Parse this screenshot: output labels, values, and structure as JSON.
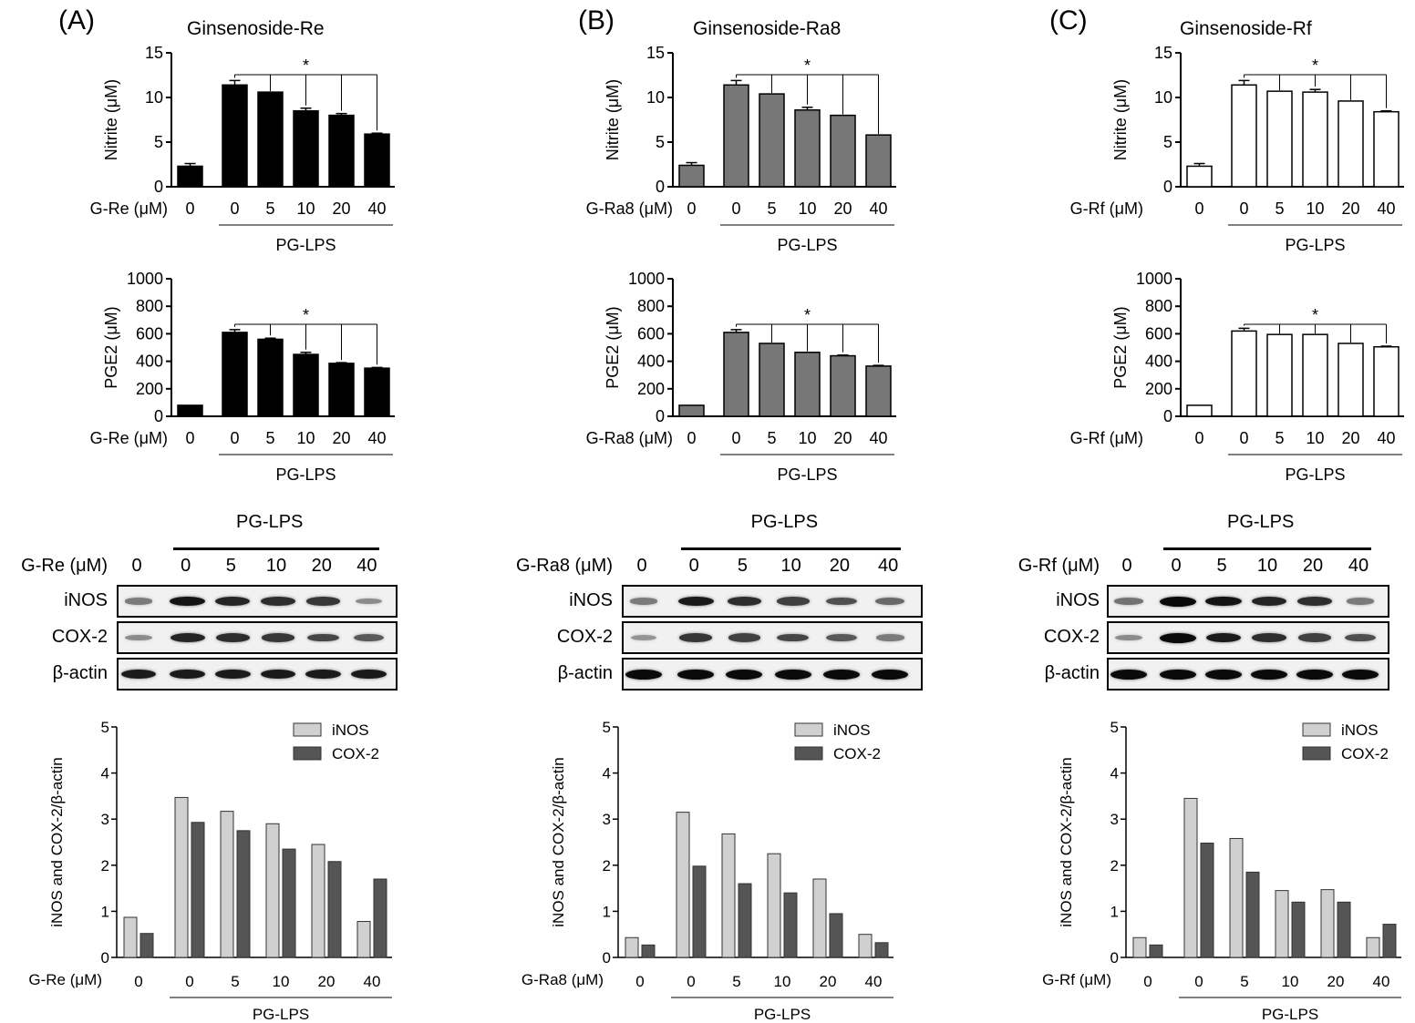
{
  "panels": [
    {
      "letter": "(A)",
      "title": "Ginsenoside-Re",
      "compound_axis_label": "G-Re (μM)",
      "blot_compound_label": "G-Re (μM)",
      "bar_color": "#000000",
      "doses": [
        "0",
        "0",
        "5",
        "10",
        "20",
        "40"
      ],
      "group_label": "PG-LPS",
      "significance": "*",
      "blot": {
        "rows": [
          "iNOS",
          "COX-2",
          "β-actin"
        ],
        "intensities": [
          [
            0.35,
            0.95,
            0.85,
            0.8,
            0.75,
            0.25
          ],
          [
            0.25,
            0.85,
            0.8,
            0.75,
            0.65,
            0.55
          ],
          [
            0.9,
            0.9,
            0.9,
            0.9,
            0.9,
            0.9
          ]
        ]
      }
    },
    {
      "letter": "(B)",
      "title": "Ginsenoside-Ra8",
      "compound_axis_label": "G-Ra8 (μM)",
      "blot_compound_label": "G-Ra8 (μM)",
      "bar_color": "#777777",
      "doses": [
        "0",
        "0",
        "5",
        "10",
        "20",
        "40"
      ],
      "group_label": "PG-LPS",
      "significance": "*",
      "blot": {
        "rows": [
          "iNOS",
          "COX-2",
          "β-actin"
        ],
        "intensities": [
          [
            0.35,
            0.9,
            0.8,
            0.7,
            0.6,
            0.45
          ],
          [
            0.2,
            0.75,
            0.7,
            0.65,
            0.55,
            0.35
          ],
          [
            1.0,
            1.0,
            1.0,
            1.0,
            1.0,
            1.0
          ]
        ]
      }
    },
    {
      "letter": "(C)",
      "title": "Ginsenoside-Rf",
      "compound_axis_label": "G-Rf (μM)",
      "blot_compound_label": "G-Rf (μM)",
      "bar_color": "#ffffff",
      "doses": [
        "0",
        "0",
        "5",
        "10",
        "20",
        "40"
      ],
      "group_label": "PG-LPS",
      "significance": "*",
      "blot": {
        "rows": [
          "iNOS",
          "COX-2",
          "β-actin"
        ],
        "intensities": [
          [
            0.4,
            1.0,
            0.95,
            0.85,
            0.8,
            0.35
          ],
          [
            0.25,
            1.0,
            0.9,
            0.8,
            0.7,
            0.6
          ],
          [
            1.0,
            1.0,
            1.0,
            1.0,
            1.0,
            1.0
          ]
        ]
      }
    }
  ],
  "chart_data": [
    {
      "type": "bar",
      "panel": "A",
      "title": "Ginsenoside-Re",
      "ylabel": "Nitrite (μM)",
      "xlabel": "G-Re (μM)",
      "categories": [
        "0",
        "0",
        "5",
        "10",
        "20",
        "40"
      ],
      "values": [
        2.3,
        11.4,
        10.6,
        8.5,
        8.0,
        5.9
      ],
      "errors": [
        0.3,
        0.5,
        0,
        0.3,
        0.2,
        0.1
      ],
      "ylim": [
        0,
        15
      ],
      "yticks": [
        "0",
        "5",
        "10",
        "15"
      ]
    },
    {
      "type": "bar",
      "panel": "A",
      "ylabel": "PGE2 (μM)",
      "xlabel": "G-Re (μM)",
      "categories": [
        "0",
        "0",
        "5",
        "10",
        "20",
        "40"
      ],
      "values": [
        80,
        610,
        560,
        450,
        385,
        350
      ],
      "errors": [
        0,
        20,
        8,
        15,
        5,
        5
      ],
      "ylim": [
        0,
        1000
      ],
      "yticks": [
        "0",
        "200",
        "400",
        "600",
        "800",
        "1000"
      ]
    },
    {
      "type": "bar",
      "panel": "A",
      "ylabel": "iNOS and COX-2/β-actin",
      "xlabel": "G-Re (μM)",
      "categories": [
        "0",
        "0",
        "5",
        "10",
        "20",
        "40"
      ],
      "series": [
        {
          "name": "iNOS",
          "color": "#d0d0d0",
          "values": [
            0.87,
            3.47,
            3.17,
            2.9,
            2.45,
            0.78
          ]
        },
        {
          "name": "COX-2",
          "color": "#555555",
          "values": [
            0.52,
            2.93,
            2.75,
            2.35,
            2.08,
            1.7
          ]
        }
      ],
      "ylim": [
        0,
        5
      ],
      "yticks": [
        "0",
        "1",
        "2",
        "3",
        "4",
        "5"
      ],
      "legend": "top-right"
    },
    {
      "type": "bar",
      "panel": "B",
      "title": "Ginsenoside-Ra8",
      "ylabel": "Nitrite (μM)",
      "xlabel": "G-Ra8 (μM)",
      "categories": [
        "0",
        "0",
        "5",
        "10",
        "20",
        "40"
      ],
      "values": [
        2.4,
        11.4,
        10.4,
        8.6,
        8.0,
        5.8
      ],
      "errors": [
        0.3,
        0.5,
        0,
        0.3,
        0,
        0
      ],
      "ylim": [
        0,
        15
      ],
      "yticks": [
        "0",
        "5",
        "10",
        "15"
      ]
    },
    {
      "type": "bar",
      "panel": "B",
      "ylabel": "PGE2 (μM)",
      "xlabel": "G-Ra8 (μM)",
      "categories": [
        "0",
        "0",
        "5",
        "10",
        "20",
        "40"
      ],
      "values": [
        80,
        610,
        530,
        465,
        440,
        365
      ],
      "errors": [
        0,
        20,
        0,
        0,
        5,
        5
      ],
      "ylim": [
        0,
        1000
      ],
      "yticks": [
        "0",
        "200",
        "400",
        "600",
        "800",
        "1000"
      ]
    },
    {
      "type": "bar",
      "panel": "B",
      "ylabel": "iNOS and COX-2/β-actin",
      "xlabel": "G-Ra8 (μM)",
      "categories": [
        "0",
        "0",
        "5",
        "10",
        "20",
        "40"
      ],
      "series": [
        {
          "name": "iNOS",
          "color": "#d0d0d0",
          "values": [
            0.43,
            3.15,
            2.68,
            2.25,
            1.7,
            0.5
          ]
        },
        {
          "name": "COX-2",
          "color": "#555555",
          "values": [
            0.27,
            1.98,
            1.6,
            1.4,
            0.95,
            0.32
          ]
        }
      ],
      "ylim": [
        0,
        5
      ],
      "yticks": [
        "0",
        "1",
        "2",
        "3",
        "4",
        "5"
      ],
      "legend": "top-right"
    },
    {
      "type": "bar",
      "panel": "C",
      "title": "Ginsenoside-Rf",
      "ylabel": "Nitrite (μM)",
      "xlabel": "G-Rf (μM)",
      "categories": [
        "0",
        "0",
        "5",
        "10",
        "20",
        "40"
      ],
      "values": [
        2.3,
        11.4,
        10.7,
        10.6,
        9.6,
        8.4
      ],
      "errors": [
        0.3,
        0.5,
        0,
        0.3,
        0,
        0.1
      ],
      "ylim": [
        0,
        15
      ],
      "yticks": [
        "0",
        "5",
        "10",
        "15"
      ]
    },
    {
      "type": "bar",
      "panel": "C",
      "ylabel": "PGE2 (μM)",
      "xlabel": "G-Rf (μM)",
      "categories": [
        "0",
        "0",
        "5",
        "10",
        "20",
        "40"
      ],
      "values": [
        80,
        620,
        595,
        595,
        530,
        505
      ],
      "errors": [
        0,
        20,
        0,
        0,
        0,
        5
      ],
      "ylim": [
        0,
        1000
      ],
      "yticks": [
        "0",
        "200",
        "400",
        "600",
        "800",
        "1000"
      ]
    },
    {
      "type": "bar",
      "panel": "C",
      "ylabel": "iNOS and COX-2/β-actin",
      "xlabel": "G-Rf (μM)",
      "categories": [
        "0",
        "0",
        "5",
        "10",
        "20",
        "40"
      ],
      "series": [
        {
          "name": "iNOS",
          "color": "#d0d0d0",
          "values": [
            0.43,
            3.45,
            2.58,
            1.45,
            1.47,
            0.43
          ]
        },
        {
          "name": "COX-2",
          "color": "#555555",
          "values": [
            0.27,
            2.48,
            1.85,
            1.2,
            1.2,
            0.72
          ]
        }
      ],
      "ylim": [
        0,
        5
      ],
      "yticks": [
        "0",
        "1",
        "2",
        "3",
        "4",
        "5"
      ],
      "legend": "top-right"
    }
  ]
}
